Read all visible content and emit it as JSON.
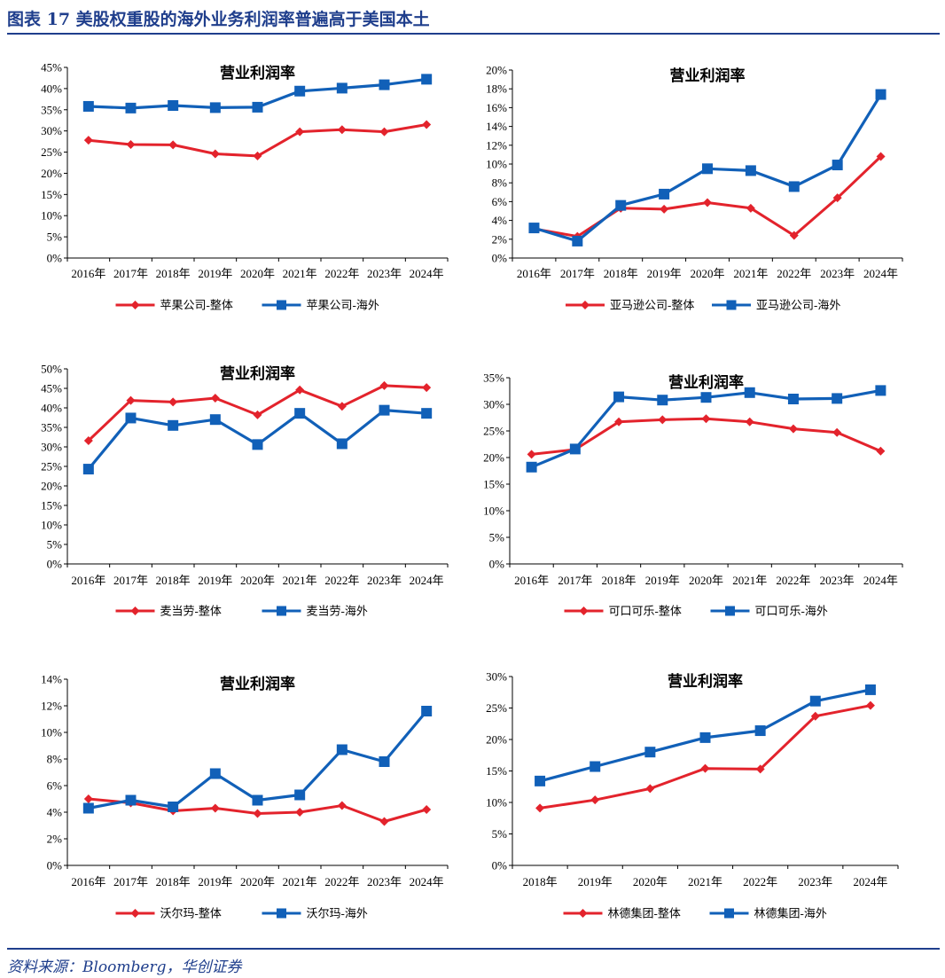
{
  "header": {
    "title": "图表 17   美股权重股的海外业务利润率普遍高于美国本土"
  },
  "footer": {
    "source": "资料来源：Bloomberg，华创证券"
  },
  "colors": {
    "overall": "#e3232c",
    "overseas": "#1160b8",
    "brand": "#1f3e8c"
  },
  "chart_data": [
    {
      "type": "line",
      "title": "营业利润率",
      "categories": [
        "2016年",
        "2017年",
        "2018年",
        "2019年",
        "2020年",
        "2021年",
        "2022年",
        "2023年",
        "2024年"
      ],
      "yticks": [
        "0%",
        "5%",
        "10%",
        "15%",
        "20%",
        "25%",
        "30%",
        "35%",
        "40%",
        "45%"
      ],
      "ylim": [
        0,
        45
      ],
      "series": [
        {
          "name": "苹果公司-整体",
          "values": [
            27.8,
            26.8,
            26.7,
            24.6,
            24.1,
            29.8,
            30.3,
            29.8,
            31.5
          ]
        },
        {
          "name": "苹果公司-海外",
          "values": [
            35.8,
            35.4,
            36.0,
            35.5,
            35.6,
            39.4,
            40.1,
            40.9,
            42.2
          ]
        }
      ]
    },
    {
      "type": "line",
      "title": "营业利润率",
      "categories": [
        "2016年",
        "2017年",
        "2018年",
        "2019年",
        "2020年",
        "2021年",
        "2022年",
        "2023年",
        "2024年"
      ],
      "yticks": [
        "0%",
        "2%",
        "4%",
        "6%",
        "8%",
        "10%",
        "12%",
        "14%",
        "16%",
        "18%",
        "20%"
      ],
      "ylim": [
        0,
        20
      ],
      "series": [
        {
          "name": "亚马逊公司-整体",
          "values": [
            3.1,
            2.3,
            5.3,
            5.2,
            5.9,
            5.3,
            2.4,
            6.4,
            10.8
          ]
        },
        {
          "name": "亚马逊公司-海外",
          "values": [
            3.2,
            1.8,
            5.6,
            6.8,
            9.5,
            9.3,
            7.6,
            9.9,
            17.4
          ]
        }
      ]
    },
    {
      "type": "line",
      "title": "营业利润率",
      "categories": [
        "2016年",
        "2017年",
        "2018年",
        "2019年",
        "2020年",
        "2021年",
        "2022年",
        "2023年",
        "2024年"
      ],
      "yticks": [
        "0%",
        "5%",
        "10%",
        "15%",
        "20%",
        "25%",
        "30%",
        "35%",
        "40%",
        "45%",
        "50%"
      ],
      "ylim": [
        0,
        50
      ],
      "series": [
        {
          "name": "麦当劳-整体",
          "values": [
            31.6,
            41.9,
            41.5,
            42.5,
            38.2,
            44.6,
            40.4,
            45.7,
            45.2
          ]
        },
        {
          "name": "麦当劳-海外",
          "values": [
            24.3,
            37.4,
            35.5,
            37.0,
            30.6,
            38.6,
            30.8,
            39.4,
            38.6
          ]
        }
      ]
    },
    {
      "type": "line",
      "title": "营业利润率",
      "categories": [
        "2016年",
        "2017年",
        "2018年",
        "2019年",
        "2020年",
        "2021年",
        "2022年",
        "2023年",
        "2024年"
      ],
      "yticks": [
        "0%",
        "5%",
        "10%",
        "15%",
        "20%",
        "25%",
        "30%",
        "35%"
      ],
      "ylim": [
        0,
        35
      ],
      "series": [
        {
          "name": "可口可乐-整体",
          "values": [
            20.6,
            21.5,
            26.7,
            27.1,
            27.3,
            26.7,
            25.4,
            24.7,
            21.2
          ]
        },
        {
          "name": "可口可乐-海外",
          "values": [
            18.2,
            21.6,
            31.4,
            30.8,
            31.3,
            32.2,
            31.0,
            31.1,
            32.6
          ]
        }
      ]
    },
    {
      "type": "line",
      "title": "营业利润率",
      "categories": [
        "2016年",
        "2017年",
        "2018年",
        "2019年",
        "2020年",
        "2021年",
        "2022年",
        "2023年",
        "2024年"
      ],
      "yticks": [
        "0%",
        "2%",
        "4%",
        "6%",
        "8%",
        "10%",
        "12%",
        "14%"
      ],
      "ylim": [
        0,
        14
      ],
      "series": [
        {
          "name": "沃尔玛-整体",
          "values": [
            5.0,
            4.7,
            4.1,
            4.3,
            3.9,
            4.0,
            4.5,
            3.3,
            4.2
          ]
        },
        {
          "name": "沃尔玛-海外",
          "values": [
            4.3,
            4.9,
            4.4,
            6.9,
            4.9,
            5.3,
            8.7,
            7.8,
            11.6
          ]
        }
      ]
    },
    {
      "type": "line",
      "title": "营业利润率",
      "categories": [
        "2018年",
        "2019年",
        "2020年",
        "2021年",
        "2022年",
        "2023年",
        "2024年"
      ],
      "yticks": [
        "0%",
        "5%",
        "10%",
        "15%",
        "20%",
        "25%",
        "30%"
      ],
      "ylim": [
        0,
        30
      ],
      "series": [
        {
          "name": "林德集团-整体",
          "values": [
            9.1,
            10.4,
            12.2,
            15.4,
            15.3,
            23.7,
            25.4
          ]
        },
        {
          "name": "林德集团-海外",
          "values": [
            13.4,
            15.7,
            18.0,
            20.3,
            21.4,
            26.1,
            27.9
          ]
        }
      ]
    }
  ]
}
